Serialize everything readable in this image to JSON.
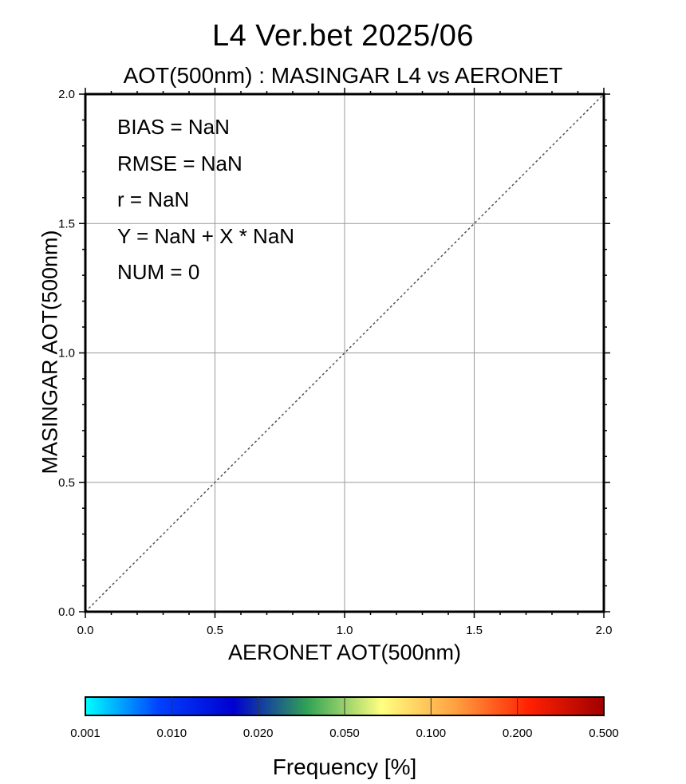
{
  "chart_data": {
    "type": "scatter",
    "title": "L4  Ver.bet  2025/06",
    "subtitle": "AOT(500nm) : MASINGAR L4 vs AERONET",
    "xlabel": "AERONET AOT(500nm)",
    "ylabel": "MASINGAR AOT(500nm)",
    "xlim": [
      0.0,
      2.0
    ],
    "ylim": [
      0.0,
      2.0
    ],
    "x_ticks": [
      "0.0",
      "0.5",
      "1.0",
      "1.5",
      "2.0"
    ],
    "y_ticks": [
      "0.0",
      "0.5",
      "1.0",
      "1.5",
      "2.0"
    ],
    "grid": true,
    "points": [],
    "reference_line": {
      "type": "1:1",
      "style": "dotted"
    },
    "stats": [
      "BIAS = NaN",
      "RMSE = NaN",
      "r = NaN",
      "Y = NaN + X * NaN",
      "NUM = 0"
    ],
    "colorbar": {
      "label": "Frequency [%]",
      "ticks": [
        "0.001",
        "0.010",
        "0.020",
        "0.050",
        "0.100",
        "0.200",
        "0.500"
      ],
      "colors": [
        "#00ffff",
        "#0040ff",
        "#0000d0",
        "#31a354",
        "#ffff80",
        "#ffa040",
        "#ff2000",
        "#a00000"
      ]
    }
  }
}
